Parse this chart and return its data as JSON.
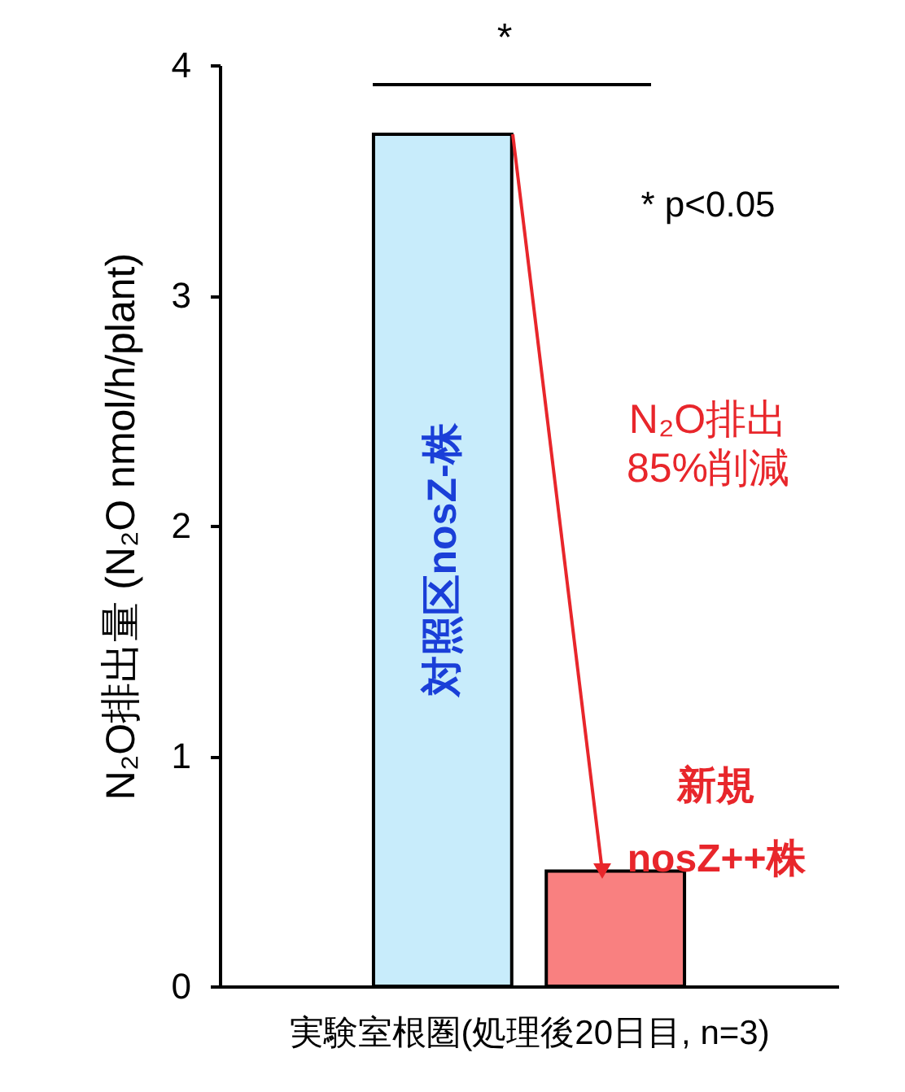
{
  "chart_data": {
    "type": "bar",
    "ylabel": "N₂O排出量 (N₂O nmol/h/plant)",
    "xlabel": "実験室根圏(処理後20日目, n=3)",
    "categories": [
      "対照区nosZ-株",
      "新規 nosZ++株"
    ],
    "values": [
      3.7,
      0.5
    ],
    "colors": [
      "#c8ecfb",
      "#f98080"
    ],
    "ylim": [
      0,
      4
    ],
    "yticks": [
      0,
      1,
      2,
      3,
      4
    ],
    "annotations": [
      "*",
      "* p<0.05",
      "N₂O排出 85%削減"
    ]
  }
}
